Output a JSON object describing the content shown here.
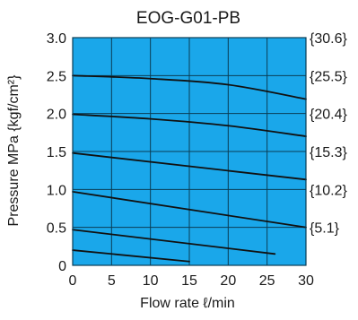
{
  "chart_data": {
    "type": "line",
    "title": "EOG-G01-PB",
    "xlabel": "Flow rate ℓ/min",
    "ylabel": "Pressure  MPa {kgf/cm²}",
    "xlim": [
      0,
      30
    ],
    "ylim": [
      0,
      3.0
    ],
    "x_ticks": [
      "0",
      "5",
      "10",
      "15",
      "20",
      "25",
      "30"
    ],
    "y_ticks": [
      "0",
      "0.5",
      "1.0",
      "1.5",
      "2.0",
      "2.5",
      "3.0"
    ],
    "y_ticks_right": [
      "{5.1}",
      "{10.2}",
      "{15.3}",
      "{20.4}",
      "{25.5}",
      "{30.6}"
    ],
    "grid": true,
    "colors": {
      "plot_background": "#1aa7ea",
      "grid": "#0a3d55",
      "line": "#111111"
    },
    "series": [
      {
        "x": [
          0,
          15
        ],
        "y": [
          0.2,
          0.05
        ]
      },
      {
        "x": [
          0,
          26
        ],
        "y": [
          0.47,
          0.15
        ]
      },
      {
        "x": [
          0,
          30
        ],
        "y": [
          0.97,
          0.5
        ]
      },
      {
        "x": [
          0,
          30
        ],
        "y": [
          1.48,
          1.13
        ]
      },
      {
        "x": [
          0,
          10,
          20,
          30
        ],
        "y": [
          1.99,
          1.93,
          1.84,
          1.7
        ]
      },
      {
        "x": [
          0,
          10,
          20,
          30
        ],
        "y": [
          2.5,
          2.46,
          2.38,
          2.19
        ]
      }
    ]
  }
}
